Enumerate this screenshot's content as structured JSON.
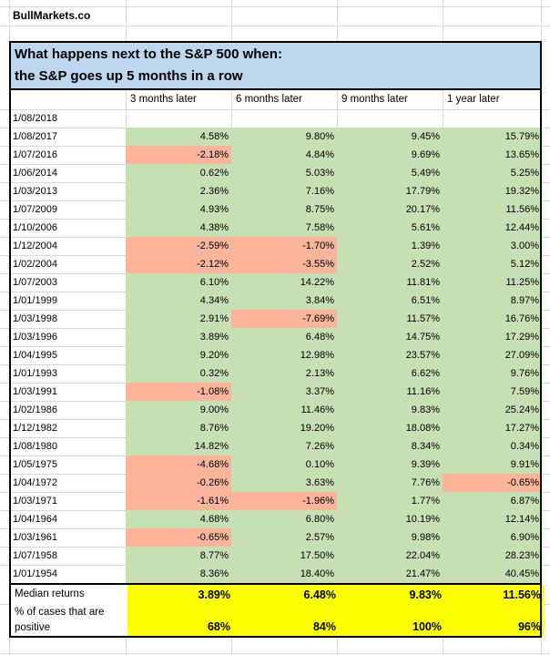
{
  "brand": "BullMarkets.co",
  "title": {
    "line1": "What happens next to the S&P 500 when:",
    "line2": "the S&P goes up 5 months in a row"
  },
  "columns": [
    "3 months later",
    "6 months later",
    "9 months later",
    "1 year later"
  ],
  "rows": [
    {
      "date": "1/08/2018",
      "values": [
        "",
        "",
        "",
        ""
      ]
    },
    {
      "date": "1/08/2017",
      "values": [
        "4.58%",
        "9.80%",
        "9.45%",
        "15.79%"
      ]
    },
    {
      "date": "1/07/2016",
      "values": [
        "-2.18%",
        "4.84%",
        "9.69%",
        "13.65%"
      ]
    },
    {
      "date": "1/06/2014",
      "values": [
        "0.62%",
        "5.03%",
        "5.49%",
        "5.25%"
      ]
    },
    {
      "date": "1/03/2013",
      "values": [
        "2.36%",
        "7.16%",
        "17.79%",
        "19.32%"
      ]
    },
    {
      "date": "1/07/2009",
      "values": [
        "4.93%",
        "8.75%",
        "20.17%",
        "11.56%"
      ]
    },
    {
      "date": "1/10/2006",
      "values": [
        "4.38%",
        "7.58%",
        "5.61%",
        "12.44%"
      ]
    },
    {
      "date": "1/12/2004",
      "values": [
        "-2.59%",
        "-1.70%",
        "1.39%",
        "3.00%"
      ]
    },
    {
      "date": "1/02/2004",
      "values": [
        "-2.12%",
        "-3.55%",
        "2.52%",
        "5.12%"
      ]
    },
    {
      "date": "1/07/2003",
      "values": [
        "6.10%",
        "14.22%",
        "11.81%",
        "11.25%"
      ]
    },
    {
      "date": "1/01/1999",
      "values": [
        "4.34%",
        "3.84%",
        "6.51%",
        "8.97%"
      ]
    },
    {
      "date": "1/03/1998",
      "values": [
        "2.91%",
        "-7.69%",
        "11.57%",
        "16.76%"
      ]
    },
    {
      "date": "1/03/1996",
      "values": [
        "3.89%",
        "6.48%",
        "14.75%",
        "17.29%"
      ]
    },
    {
      "date": "1/04/1995",
      "values": [
        "9.20%",
        "12.98%",
        "23.57%",
        "27.09%"
      ]
    },
    {
      "date": "1/01/1993",
      "values": [
        "0.32%",
        "2.13%",
        "6.62%",
        "9.76%"
      ]
    },
    {
      "date": "1/03/1991",
      "values": [
        "-1.08%",
        "3.37%",
        "11.16%",
        "7.59%"
      ]
    },
    {
      "date": "1/02/1986",
      "values": [
        "9.00%",
        "11.46%",
        "9.83%",
        "25.24%"
      ]
    },
    {
      "date": "1/12/1982",
      "values": [
        "8.76%",
        "19.20%",
        "18.08%",
        "17.27%"
      ]
    },
    {
      "date": "1/08/1980",
      "values": [
        "14.82%",
        "7.26%",
        "8.34%",
        "0.34%"
      ]
    },
    {
      "date": "1/05/1975",
      "values": [
        "-4.68%",
        "0.10%",
        "9.39%",
        "9.91%"
      ]
    },
    {
      "date": "1/04/1972",
      "values": [
        "-0.26%",
        "3.63%",
        "7.76%",
        "-0.65%"
      ]
    },
    {
      "date": "1/03/1971",
      "values": [
        "-1.61%",
        "-1.96%",
        "1.77%",
        "6.87%"
      ]
    },
    {
      "date": "1/04/1964",
      "values": [
        "4.68%",
        "6.80%",
        "10.19%",
        "12.14%"
      ]
    },
    {
      "date": "1/03/1961",
      "values": [
        "-0.65%",
        "2.57%",
        "9.98%",
        "6.90%"
      ]
    },
    {
      "date": "1/07/1958",
      "values": [
        "8.77%",
        "17.50%",
        "22.04%",
        "28.23%"
      ]
    },
    {
      "date": "1/01/1954",
      "values": [
        "8.36%",
        "18.40%",
        "21.47%",
        "40.45%"
      ]
    }
  ],
  "summary": {
    "median_label": "Median returns",
    "median_values": [
      "3.89%",
      "6.48%",
      "9.83%",
      "11.56%"
    ],
    "pct_label": "% of cases that are positive",
    "pct_values": [
      "68%",
      "84%",
      "100%",
      "96%"
    ]
  },
  "colors": {
    "positive_fill": "#C6E0B4",
    "negative_fill": "#FAB49A",
    "summary_fill": "#FFFF00",
    "title_fill": "#BDD7EE"
  }
}
